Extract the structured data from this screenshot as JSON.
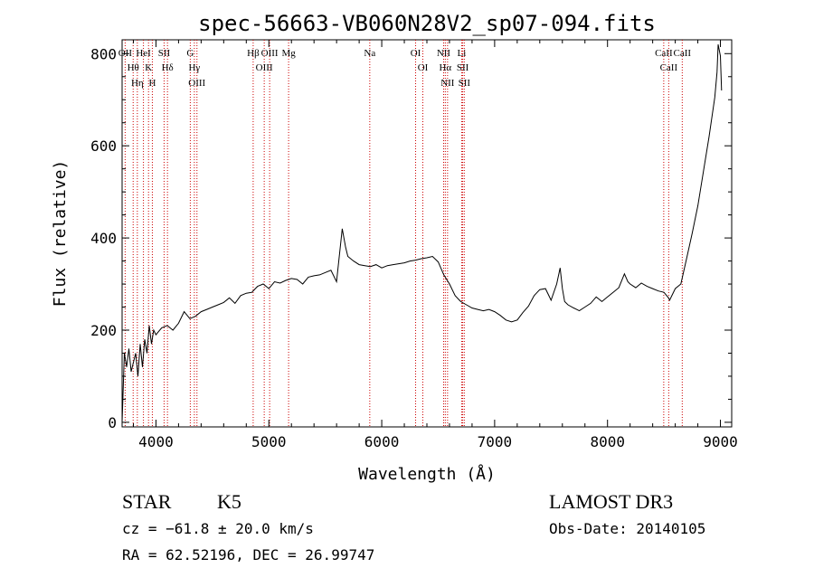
{
  "chart_data": {
    "type": "line",
    "title": "spec-56663-VB060N28V2_sp07-094.fits",
    "xlabel": "Wavelength (Å)",
    "ylabel": "Flux (relative)",
    "xlim": [
      3700,
      9100
    ],
    "ylim": [
      -10,
      830
    ],
    "x_ticks": [
      4000,
      5000,
      6000,
      7000,
      8000,
      9000
    ],
    "y_ticks": [
      0,
      200,
      400,
      600,
      800
    ],
    "grid": false,
    "series": [
      {
        "name": "flux",
        "x": [
          3700,
          3720,
          3740,
          3760,
          3780,
          3800,
          3820,
          3840,
          3860,
          3880,
          3900,
          3920,
          3940,
          3960,
          3980,
          4000,
          4050,
          4100,
          4150,
          4200,
          4250,
          4300,
          4350,
          4400,
          4450,
          4500,
          4550,
          4600,
          4650,
          4700,
          4750,
          4800,
          4850,
          4880,
          4900,
          4950,
          5000,
          5050,
          5100,
          5150,
          5200,
          5250,
          5300,
          5350,
          5400,
          5450,
          5500,
          5550,
          5600,
          5650,
          5680,
          5700,
          5750,
          5800,
          5850,
          5900,
          5950,
          6000,
          6050,
          6100,
          6150,
          6200,
          6250,
          6300,
          6350,
          6400,
          6450,
          6500,
          6550,
          6600,
          6650,
          6700,
          6750,
          6800,
          6850,
          6900,
          6950,
          7000,
          7050,
          7100,
          7150,
          7200,
          7250,
          7300,
          7350,
          7400,
          7450,
          7500,
          7550,
          7580,
          7600,
          7620,
          7650,
          7700,
          7750,
          7800,
          7850,
          7900,
          7950,
          8000,
          8050,
          8100,
          8150,
          8180,
          8200,
          8250,
          8300,
          8350,
          8400,
          8450,
          8500,
          8540,
          8550,
          8600,
          8650,
          8700,
          8750,
          8800,
          8850,
          8900,
          8950,
          8970,
          8980,
          9000,
          9010
        ],
        "y": [
          0,
          150,
          120,
          160,
          110,
          130,
          150,
          100,
          170,
          120,
          180,
          150,
          210,
          170,
          200,
          190,
          205,
          210,
          200,
          215,
          240,
          225,
          230,
          240,
          245,
          250,
          255,
          260,
          270,
          258,
          275,
          280,
          282,
          290,
          295,
          300,
          290,
          305,
          302,
          308,
          312,
          310,
          300,
          315,
          318,
          320,
          325,
          330,
          305,
          420,
          380,
          360,
          350,
          342,
          340,
          338,
          342,
          335,
          340,
          342,
          344,
          346,
          350,
          352,
          355,
          357,
          360,
          348,
          320,
          300,
          275,
          262,
          255,
          248,
          245,
          242,
          245,
          240,
          232,
          222,
          218,
          222,
          238,
          252,
          275,
          288,
          290,
          265,
          300,
          335,
          290,
          262,
          255,
          248,
          242,
          250,
          258,
          272,
          262,
          272,
          282,
          292,
          322,
          305,
          300,
          292,
          302,
          295,
          290,
          285,
          282,
          270,
          265,
          290,
          300,
          355,
          410,
          470,
          545,
          620,
          705,
          760,
          820,
          795,
          720
        ]
      }
    ],
    "line_markers": [
      {
        "label": "OII",
        "wavelength": 3727
      },
      {
        "label": "Hθ",
        "wavelength": 3798
      },
      {
        "label": "Hη",
        "wavelength": 3835
      },
      {
        "label": "HeI",
        "wavelength": 3889
      },
      {
        "label": "K",
        "wavelength": 3934
      },
      {
        "label": "H",
        "wavelength": 3968
      },
      {
        "label": "SII",
        "wavelength": 4072
      },
      {
        "label": "Hδ",
        "wavelength": 4102
      },
      {
        "label": "G",
        "wavelength": 4304
      },
      {
        "label": "Hγ",
        "wavelength": 4340
      },
      {
        "label": "OIII",
        "wavelength": 4363
      },
      {
        "label": "Hβ",
        "wavelength": 4861
      },
      {
        "label": "OIII",
        "wavelength": 4959
      },
      {
        "label": "OIII",
        "wavelength": 5007
      },
      {
        "label": "Mg",
        "wavelength": 5175
      },
      {
        "label": "Na",
        "wavelength": 5894
      },
      {
        "label": "OI",
        "wavelength": 6300
      },
      {
        "label": "OI",
        "wavelength": 6364
      },
      {
        "label": "NII",
        "wavelength": 6548
      },
      {
        "label": "Hα",
        "wavelength": 6563
      },
      {
        "label": "NII",
        "wavelength": 6583
      },
      {
        "label": "Li",
        "wavelength": 6708
      },
      {
        "label": "SII",
        "wavelength": 6717
      },
      {
        "label": "SII",
        "wavelength": 6731
      },
      {
        "label": "CaII",
        "wavelength": 8498
      },
      {
        "label": "CaII",
        "wavelength": 8542
      },
      {
        "label": "CaII",
        "wavelength": 8662
      }
    ]
  },
  "info": {
    "object_class": "STAR",
    "subclass": "K5",
    "redshift": "cz = −61.8 ± 20.0 km/s",
    "coords": "RA =  62.52196, DEC =  26.99747",
    "survey": "LAMOST DR3",
    "obs_date": "Obs-Date: 20140105"
  },
  "colors": {
    "spectrum": "#000000",
    "marker_line": "#cc0000",
    "axis": "#000000"
  }
}
